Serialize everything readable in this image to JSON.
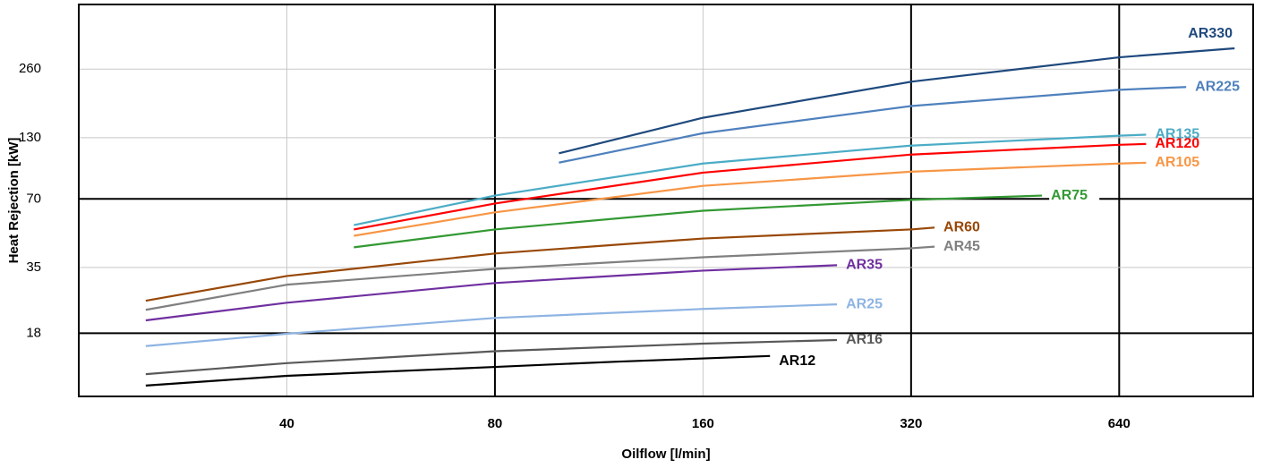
{
  "chart_data": {
    "type": "line",
    "x_label": "Oilflow [l/min]",
    "y_label": "Heat Rejection [kW]",
    "log_x": true,
    "log_y": true,
    "xlim": [
      20,
      1000
    ],
    "ylim": [
      9.5,
      500
    ],
    "xticks": [
      40,
      80,
      160,
      320,
      640
    ],
    "yticks": [
      18,
      35,
      70,
      130,
      260
    ],
    "grid": true,
    "bold_grid_x": [
      80,
      320,
      640
    ],
    "bold_grid_y": [
      18,
      70
    ],
    "series": [
      {
        "name": "AR12",
        "color": "#000000",
        "x": [
          25,
          40,
          80,
          120,
          200
        ],
        "values": [
          10.6,
          11.7,
          12.8,
          13.5,
          14.3
        ]
      },
      {
        "name": "AR16",
        "color": "#595959",
        "x": [
          25,
          40,
          80,
          160,
          250
        ],
        "values": [
          11.9,
          13.3,
          15.0,
          16.2,
          16.8
        ]
      },
      {
        "name": "AR25",
        "color": "#8eb4e3",
        "x": [
          25,
          40,
          80,
          160,
          250
        ],
        "values": [
          15.8,
          17.9,
          21.0,
          23.0,
          24.1
        ]
      },
      {
        "name": "AR35",
        "color": "#7030a0",
        "x": [
          25,
          40,
          80,
          160,
          250
        ],
        "values": [
          20.5,
          24.5,
          29.9,
          33.9,
          35.8
        ]
      },
      {
        "name": "AR45",
        "color": "#808080",
        "x": [
          25,
          40,
          80,
          160,
          320,
          346
        ],
        "values": [
          22.8,
          29.4,
          34.5,
          38.8,
          42.5,
          43.2
        ]
      },
      {
        "name": "AR60",
        "color": "#984807",
        "x": [
          25,
          40,
          80,
          160,
          320,
          346
        ],
        "values": [
          25.0,
          32.1,
          40.3,
          46.9,
          51.4,
          52.4
        ]
      },
      {
        "name": "AR75",
        "color": "#339933",
        "x": [
          50,
          80,
          160,
          320,
          495
        ],
        "values": [
          42.9,
          51.4,
          62.1,
          69.3,
          72.4
        ]
      },
      {
        "name": "AR105",
        "color": "#f79646",
        "x": [
          50,
          80,
          160,
          320,
          640,
          700
        ],
        "values": [
          48.2,
          61.1,
          79.9,
          92.2,
          100.1,
          100.9
        ]
      },
      {
        "name": "AR120",
        "color": "#ff0000",
        "x": [
          50,
          80,
          160,
          320,
          640,
          700
        ],
        "values": [
          51.4,
          66.8,
          91.3,
          109.6,
          121,
          122
        ]
      },
      {
        "name": "AR135",
        "color": "#4bacc6",
        "x": [
          50,
          80,
          160,
          320,
          640,
          700
        ],
        "values": [
          53.7,
          72.4,
          100.1,
          120,
          132.7,
          134
        ]
      },
      {
        "name": "AR225",
        "color": "#4f81bd",
        "x": [
          99,
          160,
          320,
          640,
          800
        ],
        "values": [
          101,
          136,
          179,
          211,
          217
        ]
      },
      {
        "name": "AR330",
        "color": "#1f497d",
        "x": [
          99,
          160,
          320,
          640,
          940
        ],
        "values": [
          111,
          159,
          229,
          293,
          321
        ]
      }
    ]
  }
}
